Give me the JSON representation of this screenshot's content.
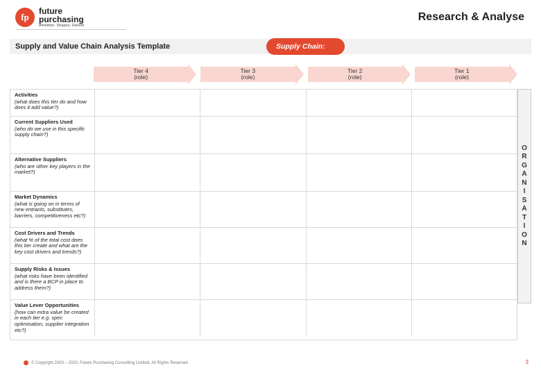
{
  "logo": {
    "mark": "fp",
    "line1": "future",
    "line2": "purchasing",
    "tagline": "Ambition. Shapes. Deliver"
  },
  "header": {
    "section": "Research & Analyse"
  },
  "toolbar": {
    "title": "Supply and Value Chain Analysis Template",
    "pill": "Supply Chain:"
  },
  "tiers": [
    {
      "title": "Tier 4",
      "sub": "(role)"
    },
    {
      "title": "Tier 3",
      "sub": "(role)"
    },
    {
      "title": "Tier 2",
      "sub": "(role)"
    },
    {
      "title": "Tier 1",
      "sub": "(role)"
    }
  ],
  "rows": [
    {
      "title": "Activities",
      "desc": "(what does this tier do and how does it add value?)"
    },
    {
      "title": "Current Suppliers Used",
      "desc": "(who do we use in this specific supply chain?)"
    },
    {
      "title": "Alternative Suppliers",
      "desc": "(who are other key players in the market?)"
    },
    {
      "title": "Market Dynamics",
      "desc": "(what is going on in terms of new entrants, substitutes, barriers, competitiveness etc?)"
    },
    {
      "title": "Cost Drivers and Trends",
      "desc": "(what % of the total cost does this tier create and what are the key cost drivers and trends?)"
    },
    {
      "title": "Supply Risks & Issues",
      "desc": "(what risks have been identified and is there a BCP in place to address them?)"
    },
    {
      "title": "Value Lever Opportunities",
      "desc": "(how can extra value be created in each tier e.g. spec optimisation, supplier integration etc?)"
    }
  ],
  "sidebar_word": "ORGANISATION",
  "footer": {
    "copyright": "© Copyright 2003 – 2020, Future Purchasing Consulting Limited, All Rights Reserved",
    "page": "3"
  },
  "colors": {
    "accent": "#e2492f",
    "tier_fill": "#f9d6cf",
    "grid": "#d8d8d8",
    "toolbar_bg": "#f1f1f1"
  }
}
